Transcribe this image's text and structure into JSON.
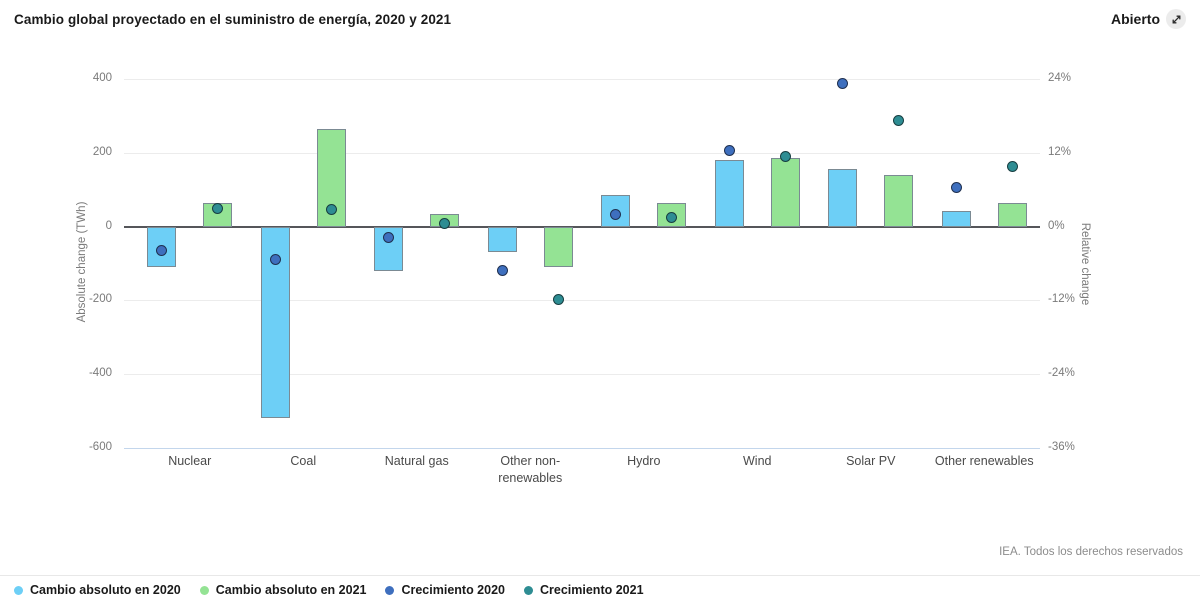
{
  "header": {
    "title": "Cambio global proyectado en el suministro de energía, 2020 y 2021",
    "open_label": "Abierto",
    "open_icon": "expand-diagonal-arrow-icon"
  },
  "footer": {
    "credit": "IEA. Todos los derechos reservados"
  },
  "colors": {
    "bar_2020": "#6dcff6",
    "bar_2021": "#94e394",
    "bar_border": "#7b8a93",
    "dot_2020": "#3e6fbe",
    "dot_2020_border": "#1f3050",
    "dot_2021": "#2e8d93",
    "dot_2021_border": "#173e41",
    "grid": "#ececec",
    "baseline": "#c3d6ec",
    "zero_line": "#55565a",
    "tick_text": "#7a7a7a",
    "category_text": "#4a4a4a",
    "title_text": "#1a1a1a",
    "credit_text": "#8c8c8c"
  },
  "chart_data": {
    "type": "bar",
    "subtype": "dual-axis bars with growth points",
    "title": "Cambio global proyectado en el suministro de energía, 2020 y 2021",
    "categories": [
      "Nuclear",
      "Coal",
      "Natural gas",
      "Other non-renewables",
      "Hydro",
      "Wind",
      "Solar PV",
      "Other renewables"
    ],
    "series": [
      {
        "name": "Cambio absoluto en 2020",
        "type": "bar",
        "axis": "left",
        "unit": "TWh",
        "color": "#6dcff6",
        "values": [
          -110,
          -520,
          -120,
          -70,
          85,
          180,
          155,
          42
        ]
      },
      {
        "name": "Cambio absoluto en 2021",
        "type": "bar",
        "axis": "left",
        "unit": "TWh",
        "color": "#94e394",
        "values": [
          65,
          265,
          35,
          -110,
          65,
          185,
          140,
          65
        ]
      },
      {
        "name": "Crecimiento 2020",
        "type": "point",
        "axis": "right",
        "unit": "%",
        "color": "#3e6fbe",
        "border": "#1f3050",
        "values": [
          -3.9,
          -5.3,
          -1.7,
          -7.1,
          2.0,
          12.4,
          23.2,
          6.3
        ]
      },
      {
        "name": "Crecimiento 2021",
        "type": "point",
        "axis": "right",
        "unit": "%",
        "color": "#2e8d93",
        "border": "#173e41",
        "values": [
          2.9,
          2.7,
          0.5,
          -11.8,
          1.5,
          11.4,
          17.2,
          9.7
        ]
      }
    ],
    "left_axis": {
      "label": "Absolute change (TWh)",
      "min": -600,
      "max": 400,
      "ticks": [
        400,
        200,
        0,
        -200,
        -400,
        -600
      ]
    },
    "right_axis": {
      "label": "Relative change",
      "min": -36,
      "max": 24,
      "ticks": [
        "24%",
        "12%",
        "0%",
        "-12%",
        "-24%",
        "-36%"
      ]
    },
    "grid": true,
    "legend_position": "bottom"
  },
  "legend": {
    "items": [
      {
        "label": "Cambio absoluto en 2020",
        "color": "#6dcff6"
      },
      {
        "label": "Cambio absoluto en 2021",
        "color": "#94e394"
      },
      {
        "label": "Crecimiento 2020",
        "color": "#3e6fbe"
      },
      {
        "label": "Crecimiento 2021",
        "color": "#2e8d93"
      }
    ]
  }
}
